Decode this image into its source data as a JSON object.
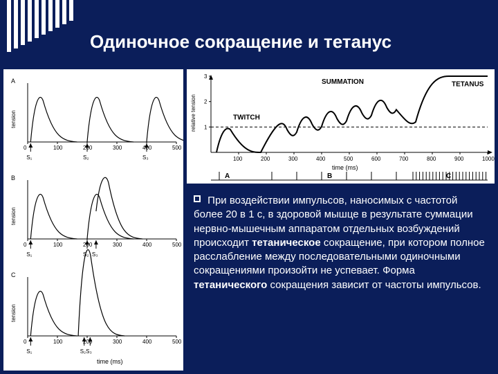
{
  "title": "Одиночное сокращение и тетанус",
  "body": {
    "bullet_square_size": 10,
    "text_parts": {
      "p1": "При воздействии импульсов, наносимых с частотой более 20 в 1 с, в здоровой мышце в результате суммации нервно-мышечным аппаратом отдельных возбуждений происходит ",
      "b1": "тетаническое",
      "p2": " сокращение, при котором полное расслабление между последовательными одиночными сокращениями произойти не успевает. Форма ",
      "b2": "тетанического",
      "p3": " сокращения зависит от частоты импульсов."
    }
  },
  "left_panel": {
    "y_label": "tension",
    "x_label": "time (ms)",
    "x_ticks": [
      0,
      100,
      200,
      300,
      400,
      500
    ],
    "panels": [
      "A",
      "B",
      "C"
    ],
    "stimulus_labels": {
      "A": [
        "S₁",
        "S₂",
        "S₃"
      ],
      "B": [
        "S₁",
        "S₂",
        "S₃"
      ],
      "C": [
        "S₁",
        "S₂S₃"
      ]
    },
    "curves": {
      "A": [
        [
          10,
          0,
          70
        ],
        [
          200,
          0,
          70
        ],
        [
          400,
          0,
          70
        ]
      ],
      "B": [
        [
          10,
          0,
          70
        ],
        [
          200,
          0,
          70
        ],
        [
          230,
          40,
          95
        ]
      ],
      "C": [
        [
          10,
          0,
          70
        ],
        [
          170,
          0,
          135
        ]
      ]
    },
    "font_size_label": 8,
    "line_color": "#000000",
    "bg": "#ffffff"
  },
  "top_panel": {
    "y_label": "relative tension",
    "x_label": "time (ms)",
    "x_ticks": [
      100,
      200,
      300,
      400,
      500,
      600,
      700,
      800,
      900,
      1000
    ],
    "y_ticks": [
      1,
      2,
      3
    ],
    "region_labels": {
      "A": "A",
      "B": "B",
      "C": "C"
    },
    "annotations": {
      "twitch": "TWITCH",
      "summation": "SUMMATION",
      "tetanus": "TETANUS"
    },
    "dash_y": 1,
    "curve_color": "#000000",
    "bg": "#ffffff"
  },
  "colors": {
    "page_bg": "#0b1e5a",
    "panel_bg": "#ffffff",
    "text": "#ffffff",
    "stroke": "#000000"
  }
}
